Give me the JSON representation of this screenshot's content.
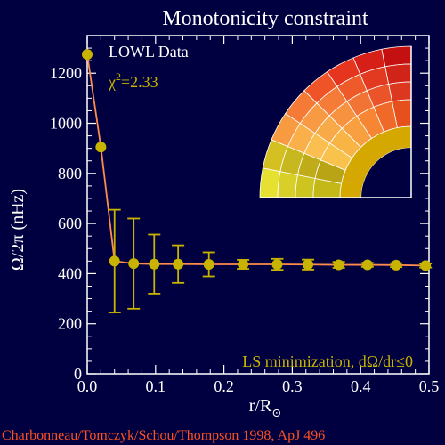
{
  "chart_data": {
    "type": "scatter",
    "title": "Monotonicity constraint",
    "xlabel_main": "r/R",
    "xlabel_sub": "⊙",
    "ylabel": "Ω/2π (nHz)",
    "xlim": [
      0.0,
      0.5
    ],
    "ylim": [
      0,
      1350
    ],
    "xticks": [
      0.0,
      0.1,
      0.2,
      0.3,
      0.4,
      0.5
    ],
    "xtick_labels": [
      "0.0",
      "0.1",
      "0.2",
      "0.3",
      "0.4",
      "0.5"
    ],
    "yticks": [
      0,
      200,
      400,
      600,
      800,
      1000,
      1200
    ],
    "ytick_labels": [
      "0",
      "200",
      "400",
      "600",
      "800",
      "1000",
      "1200"
    ],
    "dataset_label": "LOWL Data",
    "chi_label": "χ",
    "chi_exp": "2",
    "chi_value": "=2.33",
    "method_label": "LS minimization, dΩ/dr≤0",
    "credit": "Charbonneau/Tomczyk/Schou/Thompson 1998, ApJ 496",
    "series": [
      {
        "x": [
          0.0,
          0.02,
          0.04,
          0.068,
          0.098,
          0.133,
          0.178,
          0.228,
          0.278,
          0.323,
          0.368,
          0.41,
          0.452,
          0.495
        ],
        "y": [
          1275,
          905,
          450,
          440,
          438,
          438,
          437,
          437,
          437,
          436,
          435,
          435,
          434,
          432
        ],
        "err": [
          0,
          0,
          205,
          180,
          118,
          75,
          48,
          18,
          22,
          20,
          12,
          8,
          8,
          8
        ]
      }
    ],
    "fit_line": {
      "x": [
        0.0,
        0.02,
        0.04,
        0.068,
        0.098,
        0.133,
        0.178,
        0.228,
        0.278,
        0.323,
        0.368,
        0.41,
        0.452,
        0.495
      ],
      "y": [
        1275,
        905,
        450,
        440,
        438,
        438,
        437,
        437,
        437,
        436,
        435,
        435,
        434,
        432
      ]
    },
    "colors": {
      "background": "#000040",
      "axes": "#ffffff",
      "text": "#ffffff",
      "points": "#c8b400",
      "line": "#ff8c4c",
      "credit": "#ff5020",
      "annotation": "#c8b400"
    }
  }
}
